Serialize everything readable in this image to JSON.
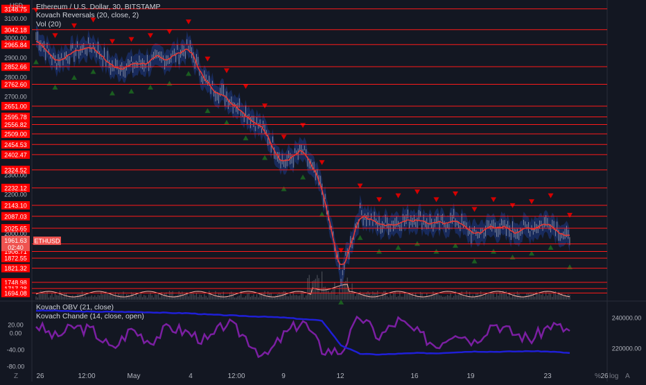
{
  "header": {
    "currency": "USD",
    "title": "Ethereum / U.S. Dollar, 30, BITSTAMP",
    "indicator1": "Kovach Reversals (20, close, 2)",
    "indicator2": "Vol (20)"
  },
  "lower_pane": {
    "indicator1": "Kovach OBV (21, close)",
    "indicator2": "Kovach Chande (14, close, open)"
  },
  "footer": {
    "tz_label": "Z",
    "log_label": "%",
    "scale_label": "log",
    "auto_label": "A"
  },
  "colors": {
    "background": "#131722",
    "support_line": "#ff1a1a",
    "price_badge": "#ff0000",
    "last_price_badge": "#ef5350",
    "candle": "#b2b5be",
    "kovach_line": "#e53935",
    "band": "#1e3a8a",
    "up_marker": "#1b5e20",
    "down_marker": "#d50000",
    "obv": "#1f1fd6",
    "chande": "#7b1fa2",
    "volume_ma": "#ffb3a7"
  },
  "chart_data": [
    {
      "type": "line",
      "title": "Ethereum / U.S. Dollar, 30, BITSTAMP",
      "symbol": "ETHUSD",
      "last_price": "1961.63",
      "countdown": "02:40",
      "y_axis_unit": "USD",
      "y_ticks": [
        "3100.00",
        "3000.00",
        "2900.00",
        "2800.00",
        "2700.00",
        "2300.00",
        "2200.00",
        "2000.00"
      ],
      "x_ticks": [
        "26",
        "12:00",
        "May",
        "4",
        "12:00",
        "9",
        "12",
        "16",
        "19",
        "23",
        "26"
      ],
      "levels": [
        "3148.75",
        "3042.18",
        "2965.84",
        "2852.66",
        "2762.60",
        "2651.00",
        "2595.78",
        "2556.82",
        "2509.00",
        "2454.53",
        "2402.47",
        "2324.52",
        "2232.12",
        "2143.10",
        "2087.03",
        "2025.65",
        "1945.37",
        "1906.71",
        "1872.55",
        "1821.32",
        "1748.98",
        "1717.28",
        "1694.08"
      ],
      "series": [
        {
          "name": "ETHUSD",
          "x": [
            "Apr 26",
            "Apr 27",
            "Apr 28",
            "Apr 29",
            "Apr 30",
            "May 1",
            "May 2",
            "May 3",
            "May 4",
            "May 5",
            "May 6",
            "May 7",
            "May 8",
            "May 9",
            "May 10",
            "May 11",
            "May 12",
            "May 13",
            "May 14",
            "May 15",
            "May 16",
            "May 17",
            "May 18",
            "May 19",
            "May 20",
            "May 21",
            "May 22",
            "May 23",
            "May 24"
          ],
          "values": [
            3010,
            2880,
            2930,
            2960,
            2850,
            2860,
            2880,
            2900,
            2950,
            2760,
            2700,
            2620,
            2520,
            2360,
            2420,
            2230,
            1780,
            2110,
            2040,
            2060,
            2080,
            2040,
            2070,
            1990,
            2040,
            2010,
            2030,
            2060,
            1960
          ]
        }
      ],
      "ylim": [
        1660,
        3180
      ],
      "grid": false,
      "legend": "top-left"
    },
    {
      "type": "line",
      "title": "",
      "y_ticks_right": [
        "240000.00",
        "220000.00"
      ],
      "y_ticks_left": [
        "20.00",
        "0.00",
        "-40.00",
        "-80.00"
      ],
      "series": [
        {
          "name": "Kovach OBV (21, close)",
          "values": [
            244500,
            244500,
            244000,
            243800,
            243800,
            243600,
            243400,
            243000,
            242800,
            242000,
            241500,
            241000,
            240500,
            240000,
            239000,
            238000,
            222000,
            216500,
            216000,
            216500,
            217000,
            216800,
            217500,
            218000,
            217800,
            218000,
            218200,
            217900,
            217000
          ]
        },
        {
          "name": "Kovach Chande (14, close, open)",
          "values": [
            20,
            -10,
            15,
            5,
            -40,
            10,
            -20,
            15,
            0,
            -20,
            25,
            -10,
            -60,
            -5,
            30,
            -40,
            -45,
            40,
            -10,
            30,
            0,
            -30,
            5,
            -20,
            25,
            0,
            -15,
            20,
            5
          ]
        }
      ]
    }
  ]
}
